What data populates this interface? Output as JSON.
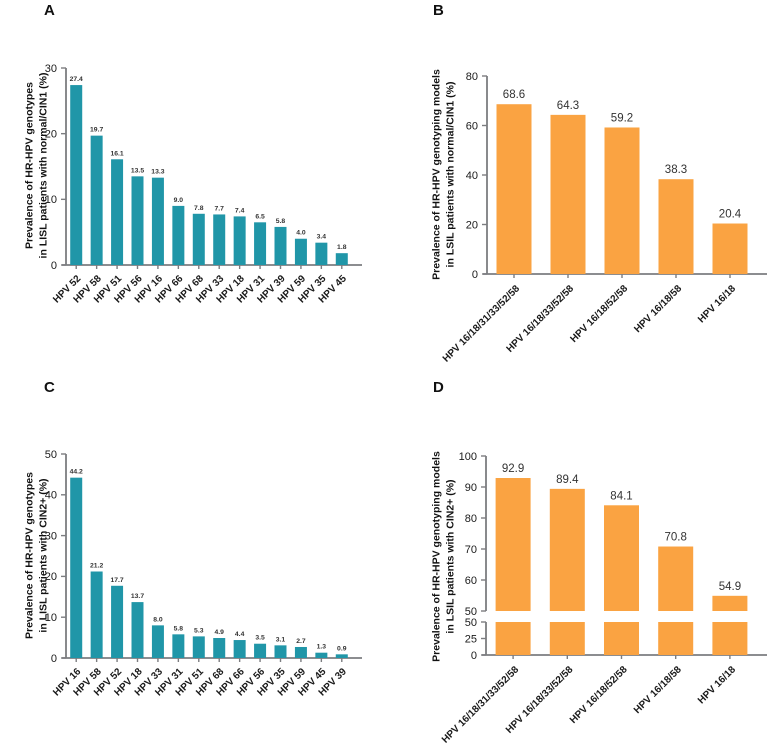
{
  "colors": {
    "bar_teal": "#2096A8",
    "bar_orange": "#FAA342",
    "axis": "#7C7D80",
    "text": "#1A1A1A"
  },
  "chart_data": [
    {
      "panel": "A",
      "type": "bar",
      "title": "",
      "ylabel": "Prevalence of HR-HPV genotypes in LISL patients with normal/CIN1 (%)",
      "ylabel_lines": [
        "Prevalence of HR-HPV genotypes",
        "in LISL patients with normal/CIN1 (%)"
      ],
      "xlabel": "",
      "categories": [
        "HPV 52",
        "HPV 58",
        "HPV 51",
        "HPV 56",
        "HPV 16",
        "HPV 66",
        "HPV 68",
        "HPV 33",
        "HPV 18",
        "HPV 31",
        "HPV 39",
        "HPV 59",
        "HPV 35",
        "HPV 45"
      ],
      "values": [
        27.4,
        19.7,
        16.1,
        13.5,
        13.3,
        9.0,
        7.8,
        7.7,
        7.4,
        6.5,
        5.8,
        4.0,
        3.4,
        1.8
      ],
      "value_labels": [
        "27.4",
        "19.7",
        "16.1",
        "13.5",
        "13.3",
        "9.0",
        "7.8",
        "7.7",
        "7.4",
        "6.5",
        "5.8",
        "4.0",
        "3.4",
        "1.8"
      ],
      "ylim": [
        0,
        30
      ],
      "yticks": [
        0,
        10,
        20,
        30
      ],
      "bar_color": "#2096A8",
      "grid": false,
      "legend": null
    },
    {
      "panel": "B",
      "type": "bar",
      "title": "",
      "ylabel": "Prevalence of HR-HPV genotyping models in LSIL patients with normal/CIN1 (%)",
      "ylabel_lines": [
        "Prevalence of HR-HPV genotyping models",
        "in LSIL patients with normal/CIN1 (%)"
      ],
      "xlabel": "",
      "categories": [
        "HPV 16/18/31/33/52/58",
        "HPV 16/18/33/52/58",
        "HPV 16/18/52/58",
        "HPV 16/18/58",
        "HPV 16/18"
      ],
      "values": [
        68.6,
        64.3,
        59.2,
        38.3,
        20.4
      ],
      "value_labels": [
        "68.6",
        "64.3",
        "59.2",
        "38.3",
        "20.4"
      ],
      "ylim": [
        0,
        80
      ],
      "yticks": [
        0,
        20,
        40,
        60,
        80
      ],
      "bar_color": "#FAA342",
      "grid": false,
      "legend": null
    },
    {
      "panel": "C",
      "type": "bar",
      "title": "",
      "ylabel": "Prevalence of HR-HPV genotypes in LISL patients with CIN2+ (%)",
      "ylabel_lines": [
        "Prevalence of HR-HPV genotypes",
        "in LISL patients with CIN2+ (%)"
      ],
      "xlabel": "",
      "categories": [
        "HPV 16",
        "HPV 58",
        "HPV 52",
        "HPV 18",
        "HPV 33",
        "HPV 31",
        "HPV 51",
        "HPV 68",
        "HPV 66",
        "HPV 56",
        "HPV 35",
        "HPV 59",
        "HPV 45",
        "HPV 39"
      ],
      "values": [
        44.2,
        21.2,
        17.7,
        13.7,
        8.0,
        5.8,
        5.3,
        4.9,
        4.4,
        3.5,
        3.1,
        2.7,
        1.3,
        0.9
      ],
      "value_labels": [
        "44.2",
        "21.2",
        "17.7",
        "13.7",
        "8.0",
        "5.8",
        "5.3",
        "4.9",
        "4.4",
        "3.5",
        "3.1",
        "2.7",
        "1.3",
        "0.9"
      ],
      "ylim": [
        0,
        50
      ],
      "yticks": [
        0,
        10,
        20,
        30,
        40,
        50
      ],
      "bar_color": "#2096A8",
      "grid": false,
      "legend": null
    },
    {
      "panel": "D",
      "type": "bar",
      "title": "",
      "ylabel": "Prevalence of HR-HPV genotyping models in LSIL patients with CIN2+ (%)",
      "ylabel_lines": [
        "Prevalence of HR-HPV genotyping models",
        "in LSIL patients with CIN2+ (%)"
      ],
      "xlabel": "",
      "categories": [
        "HPV 16/18/31/33/52/58",
        "HPV 16/18/33/52/58",
        "HPV 16/18/52/58",
        "HPV 16/18/58",
        "HPV 16/18"
      ],
      "values": [
        92.9,
        89.4,
        84.1,
        70.8,
        54.9
      ],
      "value_labels": [
        "92.9",
        "89.4",
        "84.1",
        "70.8",
        "54.9"
      ],
      "ylim": [
        0,
        100
      ],
      "axis_break": {
        "break_value": 50,
        "upper_ticks": [
          50,
          60,
          70,
          80,
          90,
          100
        ],
        "lower_ticks": [
          0,
          25,
          50
        ]
      },
      "bar_color": "#FAA342",
      "grid": false,
      "legend": null
    }
  ]
}
